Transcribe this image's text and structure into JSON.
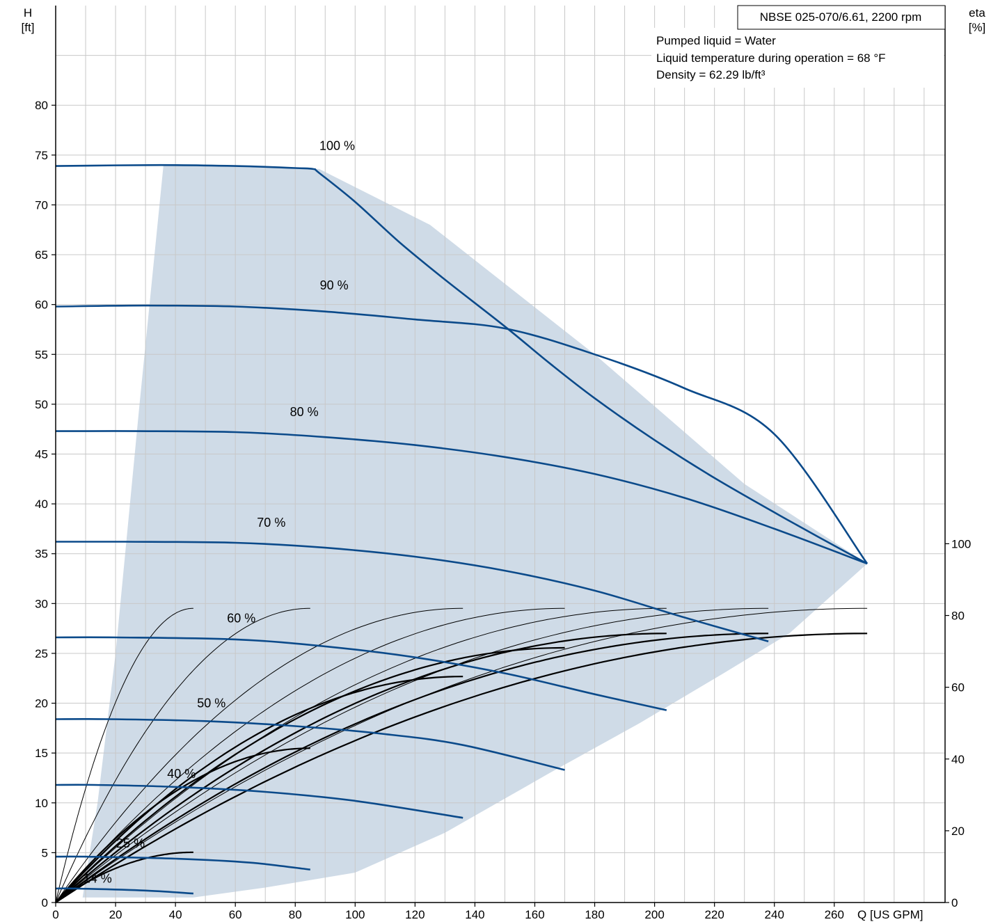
{
  "chart_data": {
    "type": "line",
    "title": "NBSE 025-070/6.61, 2200 rpm",
    "info_lines": [
      "Pumped liquid = Water",
      "Liquid temperature during operation = 68 °F",
      "Density = 62.29 lb/ft³"
    ],
    "x_axis": {
      "label": "Q [US GPM]",
      "range": [
        0,
        297
      ],
      "ticks": [
        "0",
        "20",
        "40",
        "60",
        "80",
        "100",
        "120",
        "140",
        "160",
        "180",
        "200",
        "220",
        "240",
        "260"
      ],
      "tick_values": [
        0,
        20,
        40,
        60,
        80,
        100,
        120,
        140,
        160,
        180,
        200,
        220,
        240,
        260
      ]
    },
    "y_axis_left": {
      "label_line1": "H",
      "label_line2": "[ft]",
      "range": [
        0,
        90
      ],
      "ticks": [
        "0",
        "5",
        "10",
        "15",
        "20",
        "25",
        "30",
        "35",
        "40",
        "45",
        "50",
        "55",
        "60",
        "65",
        "70",
        "75",
        "80"
      ],
      "tick_values": [
        0,
        5,
        10,
        15,
        20,
        25,
        30,
        35,
        40,
        45,
        50,
        55,
        60,
        65,
        70,
        75,
        80
      ]
    },
    "y_axis_right": {
      "label_line1": "eta",
      "label_line2": "[%]",
      "range": [
        0,
        250
      ],
      "ticks": [
        "0",
        "20",
        "40",
        "60",
        "80",
        "100"
      ],
      "tick_values": [
        0,
        20,
        40,
        60,
        80,
        100
      ]
    },
    "grid": true,
    "colors": {
      "head_curve": "#0b4a8a",
      "efficiency_curve": "#000000",
      "operating_area": "#cfdbe7",
      "grid": "#c8c8c8"
    },
    "operating_area": [
      [
        36,
        74
      ],
      [
        88,
        73.6
      ],
      [
        125,
        68
      ],
      [
        180,
        55
      ],
      [
        230,
        42
      ],
      [
        271,
        34
      ],
      [
        245,
        27
      ],
      [
        223,
        23
      ],
      [
        195,
        18
      ],
      [
        165,
        13
      ],
      [
        130,
        7
      ],
      [
        100,
        3
      ],
      [
        70,
        1.5
      ],
      [
        46,
        0.5
      ],
      [
        9,
        0.5
      ],
      [
        14,
        10
      ],
      [
        20,
        25
      ],
      [
        28,
        50
      ],
      [
        36,
        74
      ]
    ],
    "head_curves": [
      {
        "name": "100 %",
        "label_at": [
          94,
          75.5
        ],
        "points": [
          [
            0,
            73.9
          ],
          [
            35,
            74
          ],
          [
            60,
            73.9
          ],
          [
            80,
            73.7
          ],
          [
            86,
            73.6
          ],
          [
            88,
            73.2
          ],
          [
            100,
            70.3
          ],
          [
            115,
            66.2
          ],
          [
            130,
            62.5
          ],
          [
            150,
            57.8
          ],
          [
            165,
            54.1
          ],
          [
            180,
            50.6
          ],
          [
            200,
            46.4
          ],
          [
            220,
            42.6
          ],
          [
            245,
            38.3
          ],
          [
            271,
            34
          ]
        ]
      },
      {
        "name": "90 %",
        "label_at": [
          93,
          61.5
        ],
        "points": [
          [
            0,
            59.8
          ],
          [
            30,
            59.9
          ],
          [
            60,
            59.8
          ],
          [
            90,
            59.3
          ],
          [
            120,
            58.5
          ],
          [
            150,
            57.6
          ],
          [
            180,
            55.0
          ],
          [
            210,
            51.6
          ],
          [
            240,
            47.0
          ],
          [
            271,
            34
          ]
        ]
      },
      {
        "name": "80 %",
        "label_at": [
          83,
          48.8
        ],
        "points": [
          [
            0,
            47.3
          ],
          [
            27,
            47.3
          ],
          [
            60,
            47.2
          ],
          [
            90,
            46.7
          ],
          [
            120,
            45.9
          ],
          [
            150,
            44.7
          ],
          [
            180,
            43.0
          ],
          [
            210,
            40.6
          ],
          [
            240,
            37.5
          ],
          [
            271,
            34
          ]
        ]
      },
      {
        "name": "70 %",
        "label_at": [
          72,
          37.7
        ],
        "points": [
          [
            0,
            36.2
          ],
          [
            23,
            36.2
          ],
          [
            60,
            36.1
          ],
          [
            90,
            35.6
          ],
          [
            120,
            34.7
          ],
          [
            150,
            33.3
          ],
          [
            180,
            31.3
          ],
          [
            210,
            28.6
          ],
          [
            238,
            26.2
          ]
        ]
      },
      {
        "name": "60 %",
        "label_at": [
          62,
          28.1
        ],
        "points": [
          [
            0,
            26.6
          ],
          [
            20,
            26.6
          ],
          [
            60,
            26.4
          ],
          [
            90,
            25.7
          ],
          [
            120,
            24.6
          ],
          [
            150,
            23.0
          ],
          [
            180,
            20.9
          ],
          [
            204,
            19.3
          ]
        ]
      },
      {
        "name": "50 %",
        "label_at": [
          52,
          19.6
        ],
        "points": [
          [
            0,
            18.4
          ],
          [
            17,
            18.4
          ],
          [
            50,
            18.2
          ],
          [
            80,
            17.7
          ],
          [
            110,
            16.9
          ],
          [
            136,
            15.8
          ],
          [
            170,
            13.3
          ]
        ]
      },
      {
        "name": "40 %",
        "label_at": [
          42,
          12.5
        ],
        "points": [
          [
            0,
            11.8
          ],
          [
            13,
            11.8
          ],
          [
            40,
            11.6
          ],
          [
            70,
            11.1
          ],
          [
            100,
            10.2
          ],
          [
            136,
            8.5
          ]
        ]
      },
      {
        "name": "25 %",
        "label_at": [
          25,
          5.5
        ],
        "points": [
          [
            0,
            4.6
          ],
          [
            10,
            4.6
          ],
          [
            40,
            4.4
          ],
          [
            65,
            4.0
          ],
          [
            85,
            3.3
          ]
        ]
      },
      {
        "name": "14 %",
        "label_at": [
          14,
          2.0
        ],
        "points": [
          [
            0,
            1.4
          ],
          [
            7,
            1.4
          ],
          [
            30,
            1.2
          ],
          [
            46,
            0.9
          ]
        ]
      }
    ],
    "efficiency_curves": [
      {
        "qmax": 46,
        "peak": 82,
        "width": 1.0
      },
      {
        "qmax": 85,
        "peak": 82,
        "width": 1.0
      },
      {
        "qmax": 136,
        "peak": 82,
        "width": 1.0
      },
      {
        "qmax": 170,
        "peak": 82,
        "width": 1.0
      },
      {
        "qmax": 204,
        "peak": 82,
        "width": 1.0
      },
      {
        "qmax": 238,
        "peak": 82,
        "width": 1.0
      },
      {
        "qmax": 271,
        "peak": 82,
        "width": 1.0
      },
      {
        "qmax": 46,
        "peak": 14,
        "width": 2.2
      },
      {
        "qmax": 85,
        "peak": 43,
        "width": 2.2
      },
      {
        "qmax": 136,
        "peak": 63,
        "width": 2.2
      },
      {
        "qmax": 170,
        "peak": 71,
        "width": 2.2
      },
      {
        "qmax": 204,
        "peak": 75,
        "width": 2.2
      },
      {
        "qmax": 238,
        "peak": 75,
        "width": 2.2
      },
      {
        "qmax": 271,
        "peak": 75,
        "width": 2.2
      }
    ]
  }
}
